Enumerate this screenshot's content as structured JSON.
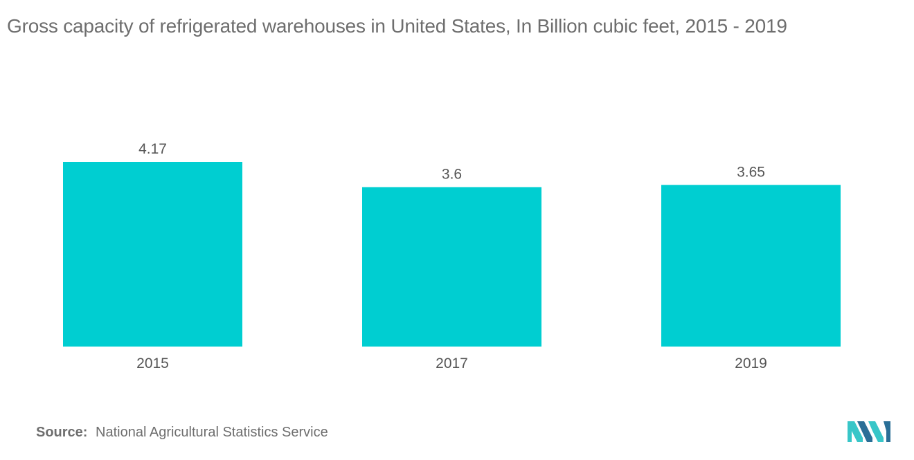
{
  "chart_data": {
    "type": "bar",
    "title": "Gross capacity of refrigerated warehouses in United States, In Billion cubic feet,  2015 - 2019",
    "categories": [
      "2015",
      "2017",
      "2019"
    ],
    "values": [
      4.17,
      3.6,
      3.65
    ],
    "value_labels": [
      "4.17",
      "3.6",
      "3.65"
    ],
    "xlabel": "",
    "ylabel": "",
    "ylim": [
      0,
      4.17
    ],
    "grid": false,
    "legend": "none",
    "bar_color": "#00ced1"
  },
  "source": {
    "label": "Source:",
    "text": "National Agricultural Statistics Service"
  },
  "colors": {
    "text": "#6e6e6e",
    "value_label": "#555555",
    "logo_dark": "#2a6f97",
    "logo_light": "#38c6c8"
  },
  "logo": {
    "icon": "mordor-logo-icon"
  }
}
